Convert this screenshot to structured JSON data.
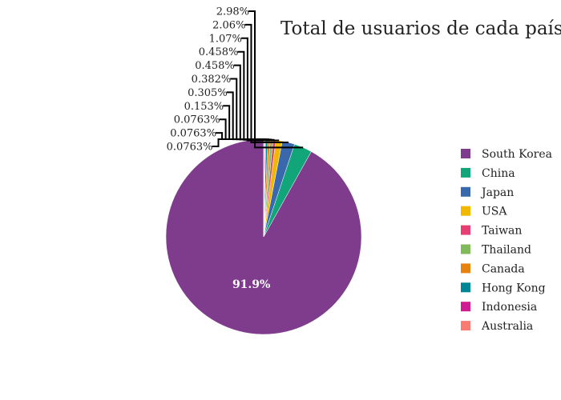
{
  "chart_data": {
    "type": "pie",
    "title": "Total de usuarios de cada país",
    "categories": [
      "South Korea",
      "China",
      "Japan",
      "USA",
      "Taiwan",
      "Thailand",
      "Canada",
      "Hong Kong",
      "Indonesia",
      "Australia",
      "",
      ""
    ],
    "values": [
      91.9,
      2.98,
      2.06,
      1.07,
      0.458,
      0.458,
      0.382,
      0.305,
      0.153,
      0.0763,
      0.0763,
      0.0763
    ],
    "labels": [
      "91.9%",
      "2.98%",
      "2.06%",
      "1.07%",
      "0.458%",
      "0.458%",
      "0.382%",
      "0.305%",
      "0.153%",
      "0.0763%",
      "0.0763%",
      "0.0763%"
    ],
    "colors": [
      "#7f3c8d",
      "#11a579",
      "#3969ac",
      "#f2b701",
      "#e73f74",
      "#80ba5a",
      "#e68310",
      "#008695",
      "#cf1c90",
      "#f97b72",
      "#4b4b8f",
      "#a5aa99"
    ],
    "legend": {
      "placement": "right",
      "items": [
        "South Korea",
        "China",
        "Japan",
        "USA",
        "Taiwan",
        "Thailand",
        "Canada",
        "Hong Kong",
        "Indonesia",
        "Australia"
      ]
    }
  }
}
